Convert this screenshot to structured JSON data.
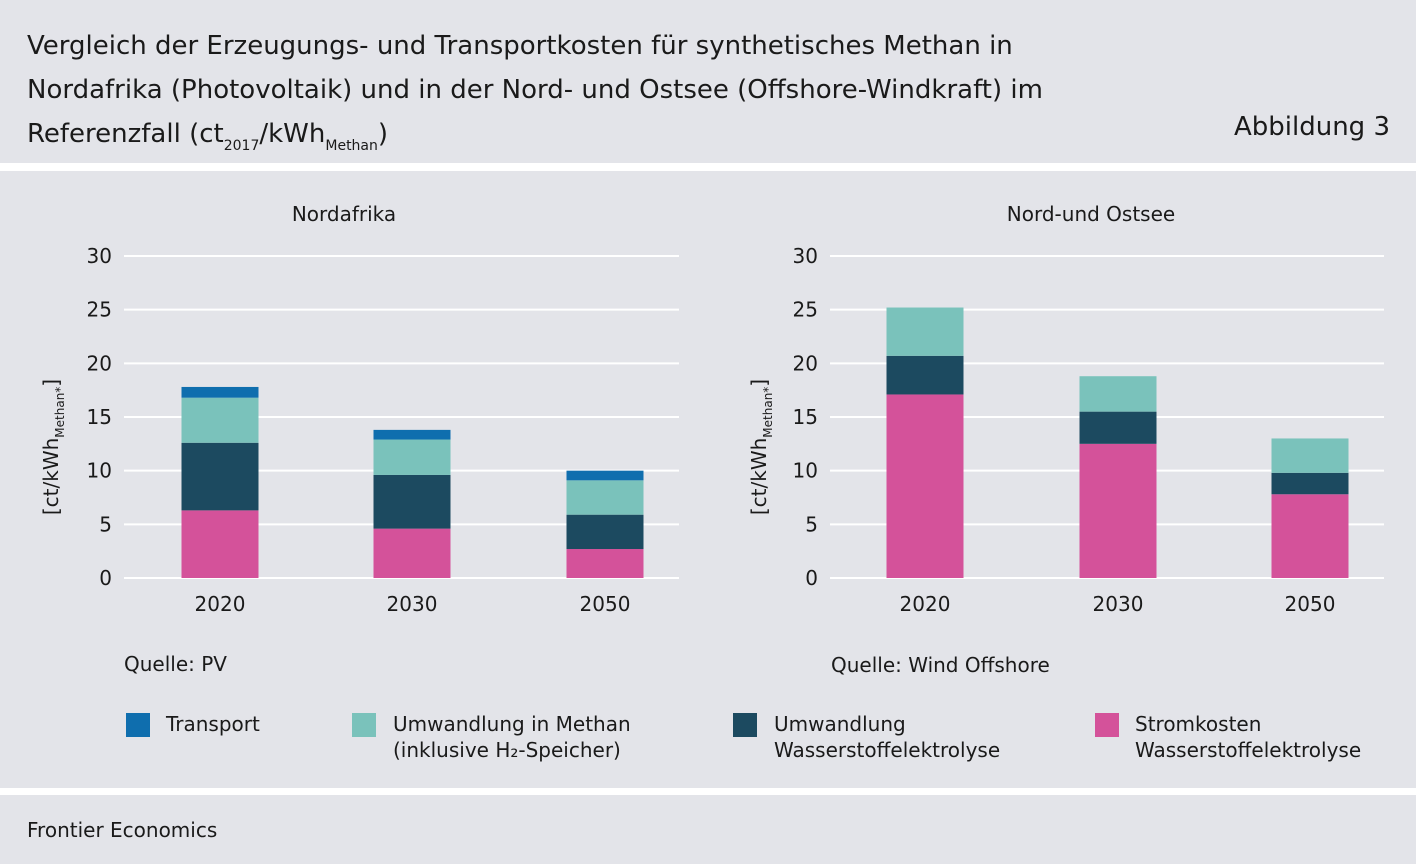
{
  "title": {
    "line1": "Vergleich der Erzeugungs- und Transportkosten für synthetisches Methan in",
    "line2": "Nordafrika (Photovoltaik) und in der Nord- und Ostsee (Offshore-Windkraft) im",
    "line3_pre": "Referenzfall (ct",
    "line3_sub1": "2017",
    "line3_mid": "/kWh",
    "line3_sub2": "Methan",
    "line3_post": ")"
  },
  "figure_label": "Abbildung 3",
  "footer_source": "Frontier Economics",
  "ylabel": {
    "main": "[ct/kWh",
    "sub": "Methan*",
    "close": "]"
  },
  "colors": {
    "transport": "#0f6eae",
    "umwandlung_methan": "#7ac2bb",
    "umwandlung_elektrolyse": "#1c4a60",
    "stromkosten": "#d4529a",
    "background": "#e3e4e9"
  },
  "legend": [
    {
      "key": "transport",
      "line1": "Transport",
      "line2": ""
    },
    {
      "key": "umwandlung_methan",
      "line1": "Umwandlung in Methan",
      "line2": "(inklusive H₂-Speicher)"
    },
    {
      "key": "umwandlung_elektrolyse",
      "line1": "Umwandlung",
      "line2": "Wasserstoffelektrolyse"
    },
    {
      "key": "stromkosten",
      "line1": "Stromkosten",
      "line2": "Wasserstoffelektrolyse"
    }
  ],
  "chart_data": [
    {
      "type": "bar",
      "stacked": true,
      "title": "Nordafrika",
      "source": "Quelle: PV",
      "categories": [
        "2020",
        "2030",
        "2050"
      ],
      "ylim": [
        0,
        30
      ],
      "yticks": [
        0,
        5,
        10,
        15,
        20,
        25,
        30
      ],
      "grid": true,
      "series": [
        {
          "key": "stromkosten",
          "values": [
            6.3,
            4.6,
            2.7
          ]
        },
        {
          "key": "umwandlung_elektrolyse",
          "values": [
            6.3,
            5.0,
            3.2
          ]
        },
        {
          "key": "umwandlung_methan",
          "values": [
            4.2,
            3.3,
            3.2
          ]
        },
        {
          "key": "transport",
          "values": [
            1.0,
            0.9,
            0.9
          ]
        }
      ]
    },
    {
      "type": "bar",
      "stacked": true,
      "title": "Nord-und Ostsee",
      "source": "Quelle: Wind Offshore",
      "categories": [
        "2020",
        "2030",
        "2050"
      ],
      "ylim": [
        0,
        30
      ],
      "yticks": [
        0,
        5,
        10,
        15,
        20,
        25,
        30
      ],
      "grid": true,
      "series": [
        {
          "key": "stromkosten",
          "values": [
            17.1,
            12.5,
            7.8
          ]
        },
        {
          "key": "umwandlung_elektrolyse",
          "values": [
            3.6,
            3.0,
            2.0
          ]
        },
        {
          "key": "umwandlung_methan",
          "values": [
            4.5,
            3.3,
            3.2
          ]
        }
      ]
    }
  ]
}
